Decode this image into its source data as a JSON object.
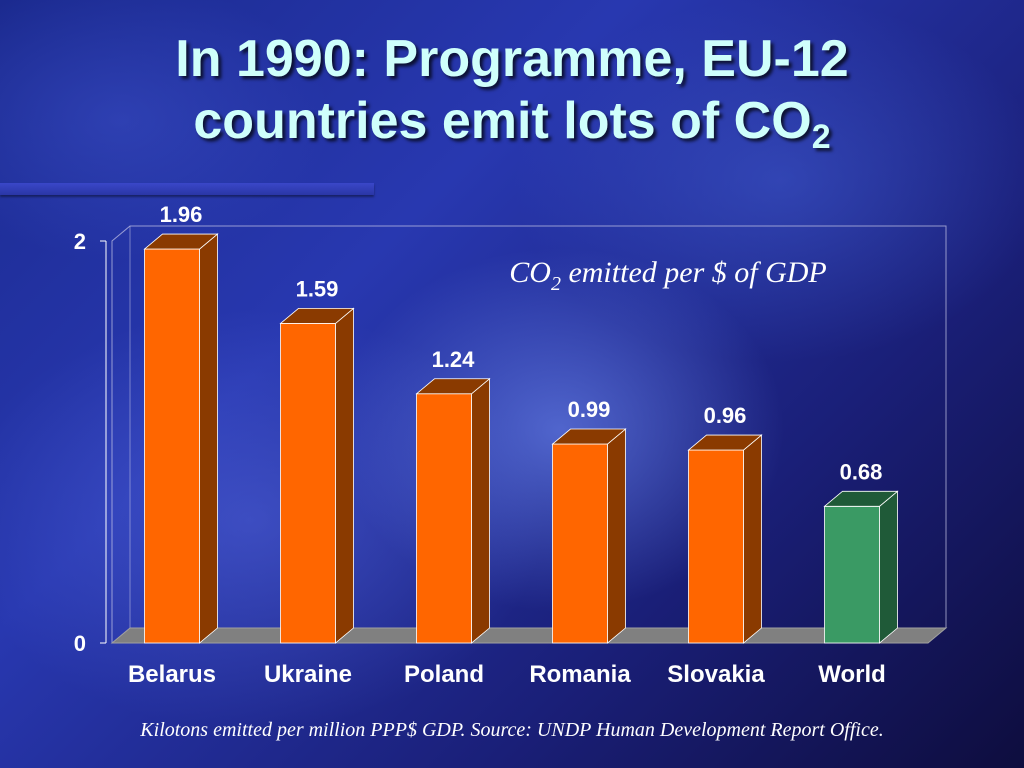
{
  "slide": {
    "title_line1": "In 1990: Programme, EU-12",
    "title_line2": "countries emit lots of CO",
    "title_sub": "2",
    "footer": "Kilotons emitted per million PPP$ GDP. Source: UNDP Human Development Report Office."
  },
  "chart_data": {
    "type": "bar",
    "title_prefix": "CO",
    "title_sub": "2",
    "title_suffix": " emitted per $ of GDP",
    "categories": [
      "Belarus",
      "Ukraine",
      "Poland",
      "Romania",
      "Slovakia",
      "World"
    ],
    "values": [
      1.96,
      1.59,
      1.24,
      0.99,
      0.96,
      0.68
    ],
    "data_labels": [
      "1.96",
      "1.59",
      "1.24",
      "0.99",
      "0.96",
      "0.68"
    ],
    "yticks": [
      "0",
      "2"
    ],
    "ylim": [
      0,
      2
    ],
    "grid": false,
    "bar_colors": [
      "#ff6600",
      "#ff6600",
      "#ff6600",
      "#ff6600",
      "#ff6600",
      "#3a9a64"
    ],
    "bar_side_colors": [
      "#8a3a00",
      "#8a3a00",
      "#8a3a00",
      "#8a3a00",
      "#8a3a00",
      "#1f5a38"
    ],
    "floor_color": "#808080"
  }
}
